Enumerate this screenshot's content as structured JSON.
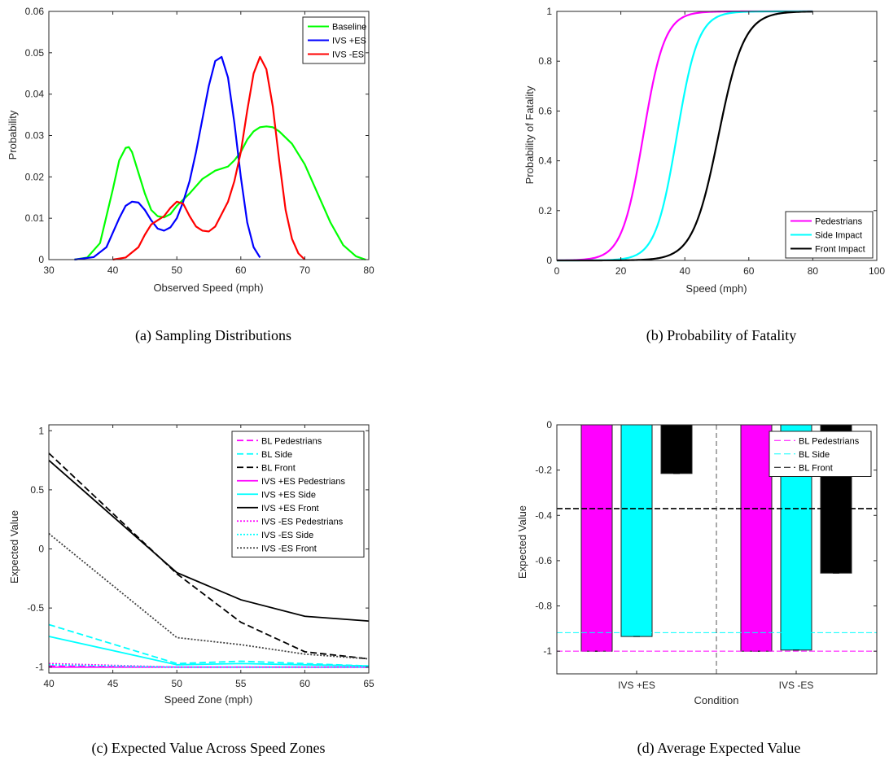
{
  "captions": [
    "(a)   Sampling Distributions",
    "(b)   Probability of Fatality",
    "(c)   Expected Value Across Speed Zones",
    "(d)   Average Expected Value"
  ],
  "chart_data": [
    {
      "id": "a",
      "type": "line",
      "xlabel": "Observed Speed (mph)",
      "ylabel": "Probability",
      "xlim": [
        30,
        80
      ],
      "ylim": [
        0,
        0.06
      ],
      "xticks": [
        "30",
        "40",
        "50",
        "60",
        "70",
        "80"
      ],
      "yticks": [
        "0",
        "0.01",
        "0.02",
        "0.03",
        "0.04",
        "0.05",
        "0.06"
      ],
      "legend_position": "top-right",
      "series": [
        {
          "name": "Baseline",
          "color": "#00ff00",
          "x": [
            34,
            36,
            38,
            40,
            41,
            42,
            42.5,
            43,
            44,
            45,
            46,
            47,
            48,
            49,
            50,
            52,
            54,
            56,
            58,
            59,
            60,
            61,
            62,
            63,
            64,
            65,
            66,
            68,
            70,
            72,
            74,
            76,
            78,
            79.5
          ],
          "y": [
            0,
            0.0005,
            0.004,
            0.017,
            0.024,
            0.027,
            0.0272,
            0.026,
            0.021,
            0.016,
            0.012,
            0.0105,
            0.0102,
            0.011,
            0.013,
            0.016,
            0.0195,
            0.0215,
            0.0225,
            0.024,
            0.026,
            0.029,
            0.031,
            0.032,
            0.0322,
            0.032,
            0.031,
            0.028,
            0.023,
            0.016,
            0.009,
            0.0035,
            0.0008,
            0
          ]
        },
        {
          "name": "IVS +ES",
          "color": "#0000ff",
          "x": [
            34,
            37,
            39,
            40,
            41,
            42,
            43,
            44,
            45,
            46,
            47,
            48,
            49,
            50,
            51,
            52,
            53,
            54,
            55,
            56,
            57,
            58,
            59,
            60,
            61,
            62,
            63
          ],
          "y": [
            0,
            0.0006,
            0.003,
            0.0065,
            0.01,
            0.013,
            0.014,
            0.0138,
            0.012,
            0.0095,
            0.0075,
            0.007,
            0.0078,
            0.01,
            0.014,
            0.019,
            0.026,
            0.034,
            0.042,
            0.048,
            0.049,
            0.044,
            0.033,
            0.02,
            0.009,
            0.003,
            0.0005
          ]
        },
        {
          "name": "IVS -ES",
          "color": "#ff0000",
          "x": [
            40,
            42,
            44,
            45,
            46,
            47,
            48,
            49,
            50,
            51,
            52,
            53,
            54,
            55,
            56,
            57,
            58,
            59,
            60,
            61,
            62,
            63,
            64,
            65,
            66,
            67,
            68,
            69,
            70
          ],
          "y": [
            0,
            0.0005,
            0.003,
            0.006,
            0.0085,
            0.0095,
            0.0105,
            0.0125,
            0.014,
            0.0135,
            0.0105,
            0.008,
            0.007,
            0.0068,
            0.008,
            0.011,
            0.014,
            0.019,
            0.026,
            0.036,
            0.045,
            0.049,
            0.046,
            0.037,
            0.024,
            0.012,
            0.005,
            0.0015,
            0
          ]
        }
      ]
    },
    {
      "id": "b",
      "type": "line",
      "xlabel": "Speed (mph)",
      "ylabel": "Probability of Fatality",
      "xlim": [
        0,
        100
      ],
      "ylim": [
        0,
        1
      ],
      "xticks": [
        "0",
        "20",
        "40",
        "60",
        "80",
        "100"
      ],
      "yticks": [
        "0",
        "0.2",
        "0.4",
        "0.6",
        "0.8",
        "1"
      ],
      "legend_position": "bottom-right",
      "series": [
        {
          "name": "Pedestrians",
          "color": "#ff00ff",
          "x_start": 0,
          "x_end": 80,
          "midpoint": 27,
          "steepness": 0.3
        },
        {
          "name": "Side Impact",
          "color": "#00ffff",
          "x_start": 0,
          "x_end": 80,
          "midpoint": 37.5,
          "steepness": 0.3
        },
        {
          "name": "Front Impact",
          "color": "#000000",
          "x_start": 0,
          "x_end": 80,
          "midpoint": 50.5,
          "steepness": 0.25
        }
      ]
    },
    {
      "id": "c",
      "type": "line",
      "xlabel": "Speed Zone (mph)",
      "ylabel": "Expected Value",
      "xlim": [
        40,
        65
      ],
      "ylim": [
        -1.05,
        1.05
      ],
      "xticks": [
        "40",
        "45",
        "50",
        "55",
        "60",
        "65"
      ],
      "yticks": [
        "-1",
        "-0.5",
        "0",
        "0.5",
        "1"
      ],
      "legend_position": "top-right",
      "x": [
        40,
        50,
        55,
        60,
        65
      ],
      "series": [
        {
          "name": "BL Pedestrians",
          "color": "#ff00ff",
          "dash": "dashed",
          "values": [
            -0.99,
            -1.0,
            -1.0,
            -1.0,
            -1.0
          ]
        },
        {
          "name": "BL Side",
          "color": "#00ffff",
          "dash": "dashed",
          "values": [
            -0.64,
            -0.97,
            -0.95,
            -0.97,
            -0.99
          ]
        },
        {
          "name": "BL Front",
          "color": "#000000",
          "dash": "dashed",
          "values": [
            0.81,
            -0.21,
            -0.62,
            -0.87,
            -0.93
          ]
        },
        {
          "name": "IVS +ES Pedestrians",
          "color": "#ff00ff",
          "dash": "solid",
          "values": [
            -1.0,
            -1.0,
            -1.0,
            -1.0,
            -1.0
          ]
        },
        {
          "name": "IVS +ES Side",
          "color": "#00ffff",
          "dash": "solid",
          "values": [
            -0.74,
            -0.98,
            -0.97,
            -0.98,
            -0.99
          ]
        },
        {
          "name": "IVS +ES Front",
          "color": "#000000",
          "dash": "solid",
          "values": [
            0.75,
            -0.2,
            -0.43,
            -0.57,
            -0.61
          ]
        },
        {
          "name": "IVS -ES Pedestrians",
          "color": "#ff00ff",
          "dash": "dotted",
          "values": [
            -0.97,
            -1.0,
            -1.0,
            -1.0,
            -1.0
          ]
        },
        {
          "name": "IVS -ES Side",
          "color": "#00ffff",
          "dash": "dotted",
          "values": [
            -0.98,
            -1.0,
            -1.0,
            -1.0,
            -1.0
          ]
        },
        {
          "name": "IVS -ES Front",
          "color": "#404040",
          "dash": "dotted",
          "values": [
            0.13,
            -0.75,
            -0.81,
            -0.89,
            -0.93
          ]
        }
      ]
    },
    {
      "id": "d",
      "type": "bar",
      "xlabel": "Condition",
      "ylabel": "Expected Value",
      "ylim": [
        -1.1,
        0
      ],
      "yticks": [
        "0",
        "-0.2",
        "-0.4",
        "-0.6",
        "-0.8",
        "-1"
      ],
      "categories": [
        "IVS +ES",
        "IVS -ES"
      ],
      "legend_position": "top-right",
      "bar_series": [
        {
          "color": "#ff00ff",
          "values": [
            -1.0,
            -1.0
          ]
        },
        {
          "color": "#00ffff",
          "values": [
            -0.935,
            -0.995
          ]
        },
        {
          "color": "#000000",
          "values": [
            -0.215,
            -0.655
          ]
        }
      ],
      "reference_lines": [
        {
          "name": "BL Pedestrians",
          "color": "#ff00ff",
          "value": -1.0
        },
        {
          "name": "BL Side",
          "color": "#00ffff",
          "value": -0.918
        },
        {
          "name": "BL Front",
          "color": "#000000",
          "value": -0.37
        }
      ]
    }
  ]
}
